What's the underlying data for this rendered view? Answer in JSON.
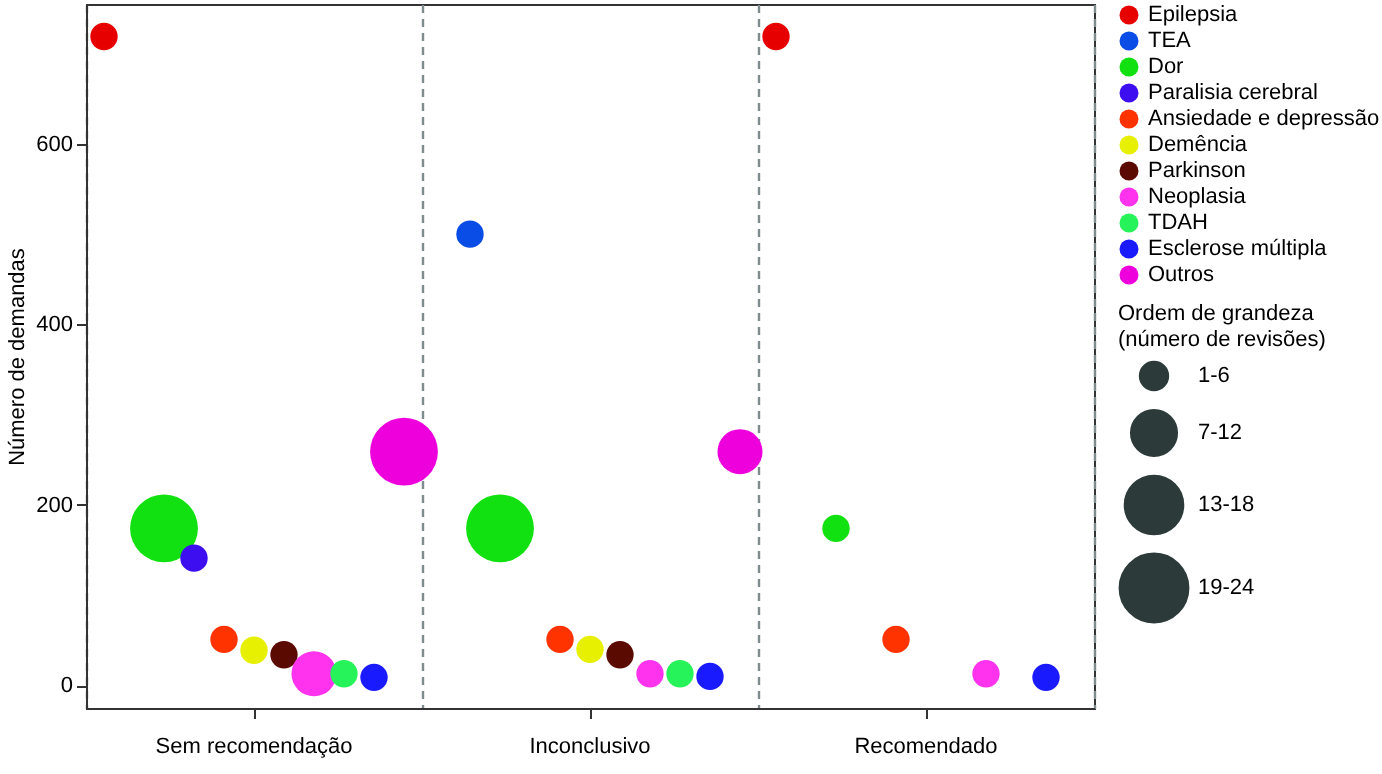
{
  "chart_data": {
    "type": "bubble",
    "ylabel": "Número de demandas",
    "legend_title": "Ordem de grandeza (número de revisões)",
    "legend": "top right",
    "grid": "x",
    "categories": [
      "Sem recomendação",
      "Inconclusivo",
      "Recomendado"
    ],
    "ylim": [
      -25,
      755
    ],
    "yticks": [
      0,
      200,
      400,
      600
    ],
    "size_legend": [
      {
        "value": 3.5,
        "label": "1-6"
      },
      {
        "value": 9.5,
        "label": "7-12"
      },
      {
        "value": 15.5,
        "label": "13-18"
      },
      {
        "value": 21.5,
        "label": "19-24"
      }
    ],
    "series": [
      {
        "name": "Epilepsia",
        "color": "#e60000",
        "x": [
          "Sem recomendação",
          "Recomendado"
        ],
        "values": [
          719,
          719
        ],
        "sizes": [
          3.5,
          3.5
        ]
      },
      {
        "name": "TEA",
        "color": "#0a4de6",
        "x": [
          "Inconclusivo"
        ],
        "values": [
          500
        ],
        "sizes": [
          3.5
        ]
      },
      {
        "name": "Dor",
        "color": "#11e011",
        "x": [
          "Sem recomendação",
          "Inconclusivo",
          "Recomendado"
        ],
        "values": [
          174,
          174,
          174
        ],
        "sizes": [
          21.5,
          21.5,
          3.5
        ]
      },
      {
        "name": "Paralisia cerebral",
        "color": "#3d0ff0",
        "x": [
          "Sem recomendação"
        ],
        "values": [
          141
        ],
        "sizes": [
          3.5
        ]
      },
      {
        "name": "Ansiedade e depressão",
        "color": "#ff3300",
        "x": [
          "Sem recomendação",
          "Inconclusivo",
          "Recomendado"
        ],
        "values": [
          51,
          51,
          51
        ],
        "sizes": [
          3.5,
          3.5,
          3.5
        ]
      },
      {
        "name": "Demência",
        "color": "#e6f000",
        "x": [
          "Sem recomendação",
          "Inconclusivo"
        ],
        "values": [
          39,
          40
        ],
        "sizes": [
          3.5,
          3.5
        ]
      },
      {
        "name": "Parkinson",
        "color": "#5a0a00",
        "x": [
          "Sem recomendação",
          "Inconclusivo"
        ],
        "values": [
          34,
          34
        ],
        "sizes": [
          3.5,
          3.5
        ]
      },
      {
        "name": "Neoplasia",
        "color": "#ff33ee",
        "x": [
          "Sem recomendação",
          "Inconclusivo",
          "Recomendado"
        ],
        "values": [
          13,
          13,
          13
        ],
        "sizes": [
          9.5,
          3.5,
          3.5
        ]
      },
      {
        "name": "TDAH",
        "color": "#26f25a",
        "x": [
          "Sem recomendação",
          "Inconclusivo"
        ],
        "values": [
          13,
          13
        ],
        "sizes": [
          3.5,
          3.5
        ]
      },
      {
        "name": "Esclerose múltipla",
        "color": "#1a1aff",
        "x": [
          "Sem recomendação",
          "Inconclusivo",
          "Recomendado"
        ],
        "values": [
          9,
          10,
          9
        ],
        "sizes": [
          3.5,
          3.5,
          3.5
        ]
      },
      {
        "name": "Outros",
        "color": "#ee00dd",
        "x": [
          "Sem recomendação",
          "Inconclusivo"
        ],
        "values": [
          259,
          259
        ],
        "sizes": [
          21.5,
          9.5
        ]
      }
    ]
  }
}
